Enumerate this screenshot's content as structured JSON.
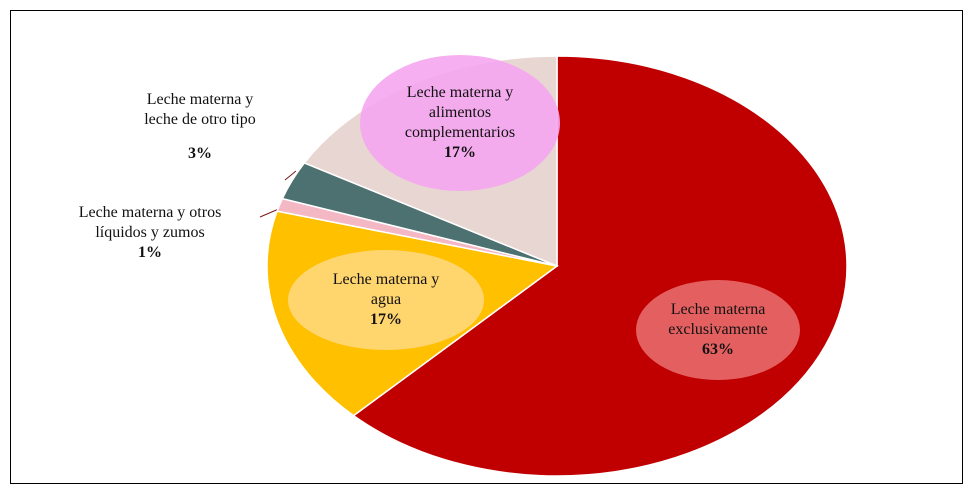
{
  "chart_data": {
    "type": "pie",
    "categories": [
      "Leche materna exclusivamente",
      "Leche materna y agua",
      "Leche materna y otros líquidos y zumos",
      "Leche materna y leche de otro tipo",
      "Leche materna y alimentos complementarios"
    ],
    "values": [
      63,
      17,
      1,
      3,
      17
    ],
    "value_labels": [
      "63%",
      "17%",
      "1%",
      "3%",
      "17%"
    ],
    "colors": [
      "#c00000",
      "#ffc000",
      "#f4b8c4",
      "#4d7070",
      "#e8d6d2"
    ]
  }
}
